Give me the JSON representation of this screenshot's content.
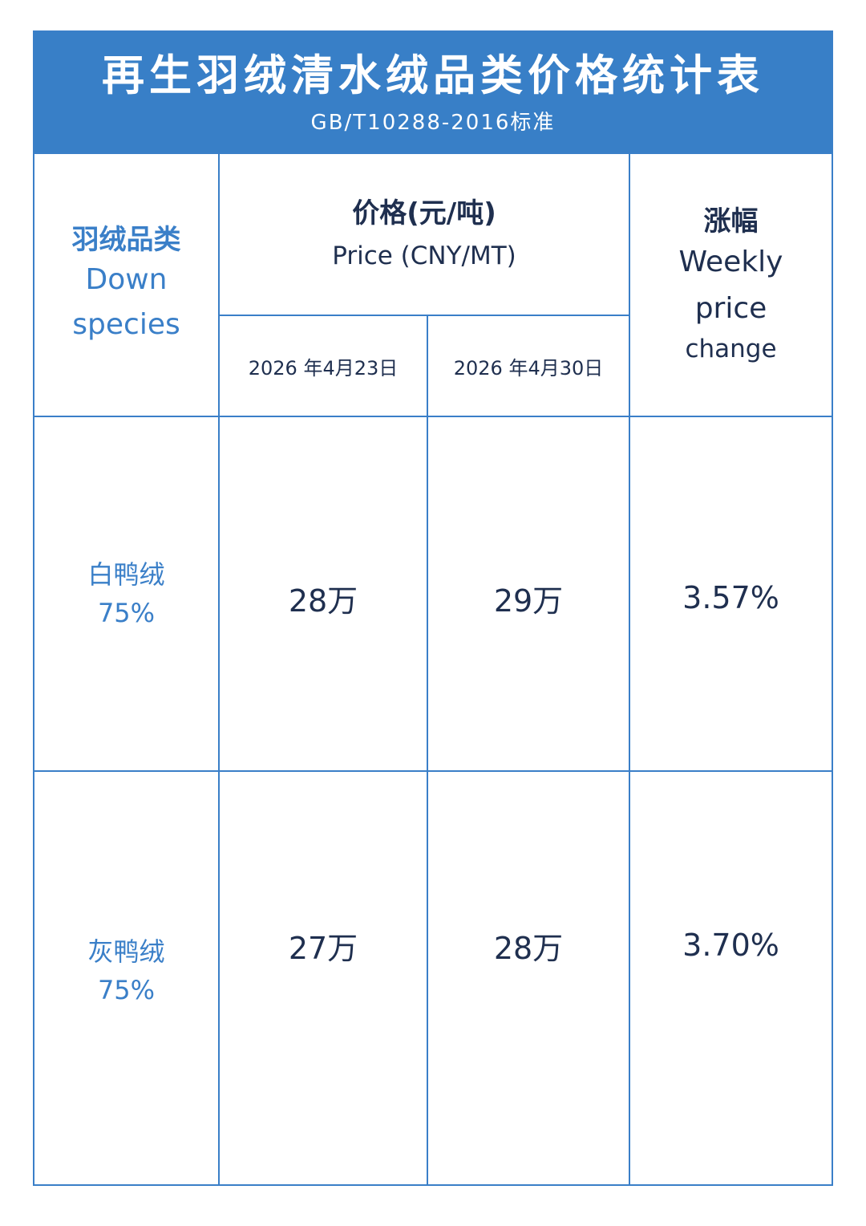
{
  "header": {
    "title": "再生羽绒清水绒品类价格统计表",
    "subtitle": "GB/T10288-2016标准"
  },
  "columns": {
    "species": {
      "zh": "羽绒品类",
      "en_line1": "Down",
      "en_line2": "species"
    },
    "price": {
      "zh": "价格(元/吨)",
      "en": "Price (CNY/MT)"
    },
    "date1": "2026 年4月23日",
    "date2": "2026 年4月30日",
    "change": {
      "zh": "涨幅",
      "en_line1": "Weekly",
      "en_line2": "price",
      "en_line3": "change"
    }
  },
  "rows": [
    {
      "species_line1": "白鸭绒",
      "species_line2": "75%",
      "price1": "28万",
      "price2": "29万",
      "change": "3.57%"
    },
    {
      "species_line1": "灰鸭绒",
      "species_line2": "75%",
      "price1": "27万",
      "price2": "28万",
      "change": "3.70%"
    }
  ],
  "colors": {
    "brand_blue": "#387fc7",
    "text_dark": "#1f2f4f"
  }
}
